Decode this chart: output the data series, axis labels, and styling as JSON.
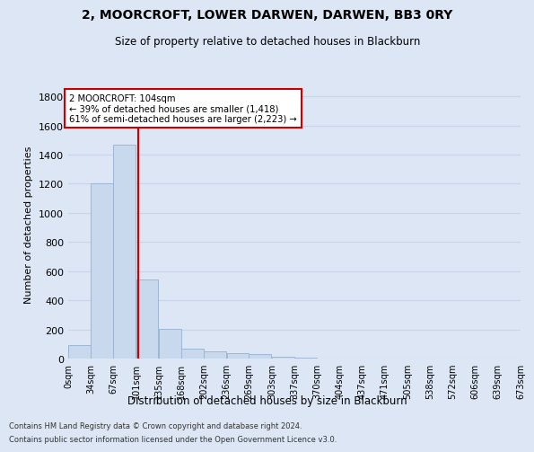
{
  "title1": "2, MOORCROFT, LOWER DARWEN, DARWEN, BB3 0RY",
  "title2": "Size of property relative to detached houses in Blackburn",
  "xlabel": "Distribution of detached houses by size in Blackburn",
  "ylabel": "Number of detached properties",
  "bar_values": [
    90,
    1200,
    1470,
    540,
    205,
    65,
    47,
    35,
    28,
    15,
    8,
    0,
    0,
    0,
    0,
    0,
    0,
    0,
    0
  ],
  "bar_left_edges": [
    0,
    34,
    67,
    101,
    135,
    168,
    202,
    236,
    269,
    303,
    337,
    370,
    404,
    437,
    471,
    505,
    538,
    572,
    606
  ],
  "bin_width": 33,
  "bar_color": "#c9d9ed",
  "bar_edgecolor": "#9eb6d4",
  "tick_labels": [
    "0sqm",
    "34sqm",
    "67sqm",
    "101sqm",
    "135sqm",
    "168sqm",
    "202sqm",
    "236sqm",
    "269sqm",
    "303sqm",
    "337sqm",
    "370sqm",
    "404sqm",
    "437sqm",
    "471sqm",
    "505sqm",
    "538sqm",
    "572sqm",
    "606sqm",
    "639sqm",
    "673sqm"
  ],
  "property_line_x": 104,
  "property_line_color": "#cc0000",
  "annotation_text": "2 MOORCROFT: 104sqm\n← 39% of detached houses are smaller (1,418)\n61% of semi-detached houses are larger (2,223) →",
  "annotation_box_facecolor": "#ffffff",
  "annotation_box_edgecolor": "#cc0000",
  "ylim": [
    0,
    1850
  ],
  "yticks": [
    0,
    200,
    400,
    600,
    800,
    1000,
    1200,
    1400,
    1600,
    1800
  ],
  "xlim": [
    0,
    673
  ],
  "grid_color": "#c8d4e8",
  "bg_color": "#dce6f5",
  "footer1": "Contains HM Land Registry data © Crown copyright and database right 2024.",
  "footer2": "Contains public sector information licensed under the Open Government Licence v3.0."
}
